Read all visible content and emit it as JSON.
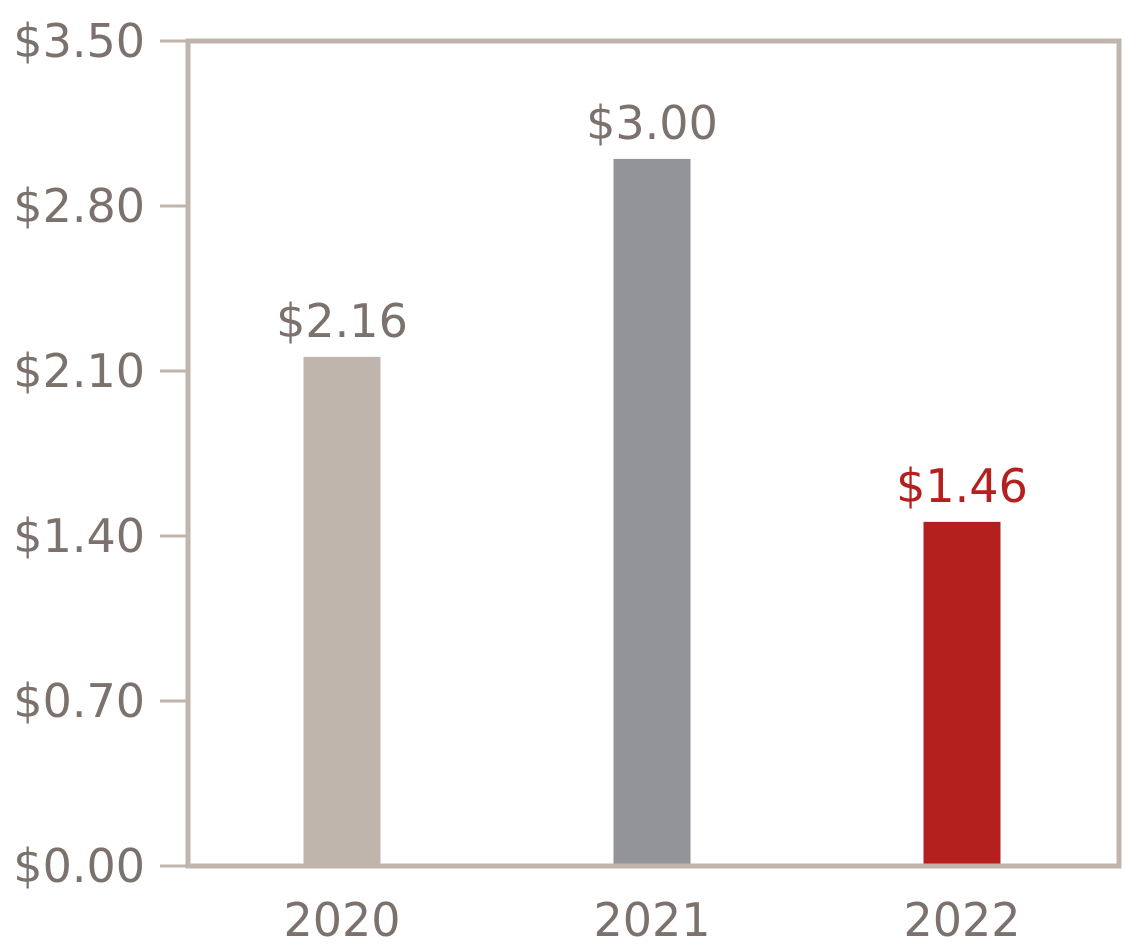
{
  "chart_data": {
    "type": "bar",
    "categories": [
      "2020",
      "2021",
      "2022"
    ],
    "values": [
      2.16,
      3.0,
      1.46
    ],
    "value_labels": [
      "$2.16",
      "$3.00",
      "$1.46"
    ],
    "bar_colors": [
      "#bfb5ad",
      "#939498",
      "#b3201e"
    ],
    "value_label_colors": [
      "#7b716d",
      "#7b716d",
      "#b3201e"
    ],
    "yticks": [
      0,
      0.7,
      1.4,
      2.1,
      2.8,
      3.5
    ],
    "ytick_labels": [
      "$0.00",
      "$0.70",
      "$1.40",
      "$2.10",
      "$2.80",
      "$3.50"
    ],
    "ylim": [
      0,
      3.5
    ],
    "title": "",
    "xlabel": "",
    "ylabel": "",
    "grid": false,
    "frame_color": "#bfb5ad",
    "text_color": "#7b716d"
  }
}
